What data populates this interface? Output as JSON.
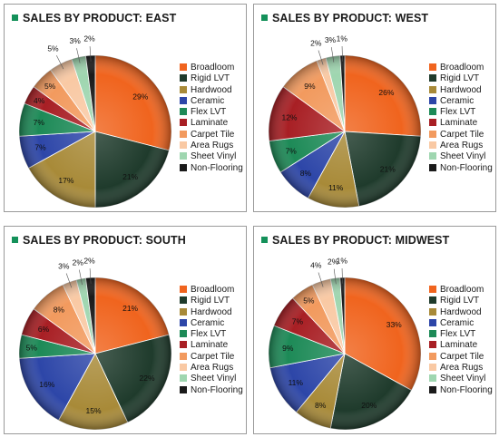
{
  "colors": {
    "Broadloom": "#f0641e",
    "Rigid LVT": "#1f3b2c",
    "Hardwood": "#a88a38",
    "Ceramic": "#2d46a8",
    "Flex LVT": "#1d8a57",
    "Laminate": "#a81f24",
    "Carpet Tile": "#f29a5e",
    "Area Rugs": "#f9c9a4",
    "Sheet Vinyl": "#9fd6b0",
    "Non-Flooring": "#1a1a1a"
  },
  "chart_data": [
    {
      "type": "pie",
      "title": "SALES BY PRODUCT: EAST",
      "categories": [
        "Broadloom",
        "Rigid LVT",
        "Hardwood",
        "Ceramic",
        "Flex LVT",
        "Laminate",
        "Carpet Tile",
        "Area Rugs",
        "Sheet Vinyl",
        "Non-Flooring"
      ],
      "values": [
        29,
        21,
        17,
        7,
        7,
        4,
        5,
        5,
        3,
        2
      ],
      "labels": [
        "29%",
        "21%",
        "17%",
        "7%",
        "7%",
        "4%",
        "5%",
        "5%",
        "3%",
        "2%"
      ],
      "legend": [
        "Broadloom",
        "Rigid LVT",
        "Hardwood",
        "Ceramic",
        "Flex LVT",
        "Laminate",
        "Carpet Tile",
        "Area Rugs",
        "Sheet Vinyl",
        "Non-Flooring"
      ]
    },
    {
      "type": "pie",
      "title": "SALES BY PRODUCT: WEST",
      "categories": [
        "Broadloom",
        "Rigid LVT",
        "Hardwood",
        "Ceramic",
        "Flex LVT",
        "Laminate",
        "Carpet Tile",
        "Area Rugs",
        "Sheet Vinyl",
        "Non-Flooring"
      ],
      "values": [
        26,
        21,
        11,
        8,
        7,
        12,
        9,
        2,
        3,
        1
      ],
      "labels": [
        "26%",
        "21%",
        "11%",
        "8%",
        "7%",
        "12%",
        "9%",
        "2%",
        "3%",
        "1%"
      ],
      "legend": [
        "Broadloom",
        "Rigid LVT",
        "Hardwood",
        "Ceramic",
        "Flex LVT",
        "Laminate",
        "Carpet Tile",
        "Area Rugs",
        "Sheet Vinyl",
        "Non-Flooring"
      ]
    },
    {
      "type": "pie",
      "title": "SALES BY PRODUCT: SOUTH",
      "categories": [
        "Broadloom",
        "Rigid LVT",
        "Hardwood",
        "Ceramic",
        "Flex LVT",
        "Laminate",
        "Carpet Tile",
        "Area Rugs",
        "Sheet Vinyl",
        "Non-Flooring"
      ],
      "values": [
        21,
        22,
        15,
        16,
        5,
        6,
        8,
        3,
        2,
        2
      ],
      "labels": [
        "21%",
        "22%",
        "15%",
        "16%",
        "5%",
        "6%",
        "8%",
        "3%",
        "2%",
        "2%"
      ],
      "legend": [
        "Broadloom",
        "Rigid LVT",
        "Hardwood",
        "Ceramic",
        "Flex LVT",
        "Laminate",
        "Carpet Tile",
        "Area Rugs",
        "Sheet Vinyl",
        "Non-Flooring"
      ]
    },
    {
      "type": "pie",
      "title": "SALES BY PRODUCT: MIDWEST",
      "categories": [
        "Broadloom",
        "Rigid LVT",
        "Hardwood",
        "Ceramic",
        "Flex LVT",
        "Laminate",
        "Carpet Tile",
        "Area Rugs",
        "Sheet Vinyl",
        "Non-Flooring"
      ],
      "values": [
        33,
        20,
        8,
        11,
        9,
        7,
        5,
        4,
        2,
        1
      ],
      "labels": [
        "33%",
        "20%",
        "8%",
        "11%",
        "9%",
        "7%",
        "5%",
        "4%",
        "2%",
        "1%"
      ],
      "legend": [
        "Broadloom",
        "Rigid LVT",
        "Hardwood",
        "Ceramic",
        "Flex LVT",
        "Laminate",
        "Carpet Tile",
        "Area Rugs",
        "Sheet Vinyl",
        "Non-Flooring"
      ]
    }
  ]
}
